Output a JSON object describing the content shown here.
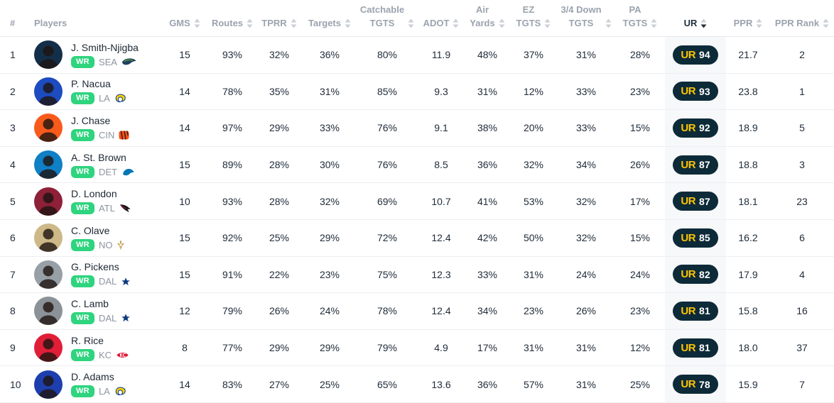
{
  "branding": {
    "ur_logo_text": "UR"
  },
  "colors": {
    "position_badge": "#2ED47E",
    "ur_badge_bg": "#0D2A38",
    "ur_badge_gold": "#FFC400",
    "ur_column_bg": "#F7F8FA",
    "header_text": "#9BA3AE",
    "accent_sorted": "#22313F"
  },
  "sort": {
    "column": "UR",
    "direction": "desc"
  },
  "table": {
    "columns": [
      {
        "key": "rank",
        "lines": [
          "#"
        ],
        "sortable": false,
        "align": "left"
      },
      {
        "key": "player",
        "lines": [
          "Players"
        ],
        "sortable": false,
        "align": "left"
      },
      {
        "key": "gms",
        "lines": [
          "GMS"
        ],
        "sortable": true
      },
      {
        "key": "routes",
        "lines": [
          "Routes"
        ],
        "sortable": true
      },
      {
        "key": "tprr",
        "lines": [
          "TPRR"
        ],
        "sortable": true
      },
      {
        "key": "targets",
        "lines": [
          "Targets"
        ],
        "sortable": true
      },
      {
        "key": "catchable_tgts",
        "lines": [
          "Catchable",
          "TGTS"
        ],
        "sortable": true
      },
      {
        "key": "adot",
        "lines": [
          "ADOT"
        ],
        "sortable": true
      },
      {
        "key": "air_yards",
        "lines": [
          "Air",
          "Yards"
        ],
        "sortable": true
      },
      {
        "key": "ez_tgts",
        "lines": [
          "EZ",
          "TGTS"
        ],
        "sortable": true
      },
      {
        "key": "down_tgts",
        "lines": [
          "3/4 Down",
          "TGTS"
        ],
        "sortable": true
      },
      {
        "key": "pa_tgts",
        "lines": [
          "PA",
          "TGTS"
        ],
        "sortable": true
      },
      {
        "key": "ur",
        "lines": [
          "UR"
        ],
        "sortable": true,
        "sorted": "desc"
      },
      {
        "key": "ppr",
        "lines": [
          "PPR"
        ],
        "sortable": true
      },
      {
        "key": "ppr_rank",
        "lines": [
          "PPR Rank"
        ],
        "sortable": true
      }
    ]
  },
  "players": [
    {
      "rank": "1",
      "name": "J. Smith-Njigba",
      "position": "WR",
      "team": "SEA",
      "avatar_color": "#132e49",
      "gms": "15",
      "routes": "93%",
      "tprr": "32%",
      "targets": "36%",
      "catchable_tgts": "80%",
      "adot": "11.9",
      "air_yards": "48%",
      "ez_tgts": "37%",
      "down_tgts": "31%",
      "pa_tgts": "28%",
      "ur": "94",
      "ppr": "21.7",
      "ppr_rank": "2"
    },
    {
      "rank": "2",
      "name": "P. Nacua",
      "position": "WR",
      "team": "LA",
      "avatar_color": "#1d4bc0",
      "gms": "14",
      "routes": "78%",
      "tprr": "35%",
      "targets": "31%",
      "catchable_tgts": "85%",
      "adot": "9.3",
      "air_yards": "31%",
      "ez_tgts": "12%",
      "down_tgts": "33%",
      "pa_tgts": "23%",
      "ur": "93",
      "ppr": "23.8",
      "ppr_rank": "1"
    },
    {
      "rank": "3",
      "name": "J. Chase",
      "position": "WR",
      "team": "CIN",
      "avatar_color": "#f85a1c",
      "gms": "14",
      "routes": "97%",
      "tprr": "29%",
      "targets": "33%",
      "catchable_tgts": "76%",
      "adot": "9.1",
      "air_yards": "38%",
      "ez_tgts": "20%",
      "down_tgts": "33%",
      "pa_tgts": "15%",
      "ur": "92",
      "ppr": "18.9",
      "ppr_rank": "5"
    },
    {
      "rank": "4",
      "name": "A. St. Brown",
      "position": "WR",
      "team": "DET",
      "avatar_color": "#0f7fc6",
      "gms": "15",
      "routes": "89%",
      "tprr": "28%",
      "targets": "30%",
      "catchable_tgts": "76%",
      "adot": "8.5",
      "air_yards": "36%",
      "ez_tgts": "32%",
      "down_tgts": "34%",
      "pa_tgts": "26%",
      "ur": "87",
      "ppr": "18.8",
      "ppr_rank": "3"
    },
    {
      "rank": "5",
      "name": "D. London",
      "position": "WR",
      "team": "ATL",
      "avatar_color": "#8e2038",
      "gms": "10",
      "routes": "93%",
      "tprr": "28%",
      "targets": "32%",
      "catchable_tgts": "69%",
      "adot": "10.7",
      "air_yards": "41%",
      "ez_tgts": "53%",
      "down_tgts": "32%",
      "pa_tgts": "17%",
      "ur": "87",
      "ppr": "18.1",
      "ppr_rank": "23"
    },
    {
      "rank": "6",
      "name": "C. Olave",
      "position": "WR",
      "team": "NO",
      "avatar_color": "#cdb888",
      "gms": "15",
      "routes": "92%",
      "tprr": "25%",
      "targets": "29%",
      "catchable_tgts": "72%",
      "adot": "12.4",
      "air_yards": "42%",
      "ez_tgts": "50%",
      "down_tgts": "32%",
      "pa_tgts": "15%",
      "ur": "85",
      "ppr": "16.2",
      "ppr_rank": "6"
    },
    {
      "rank": "7",
      "name": "G. Pickens",
      "position": "WR",
      "team": "DAL",
      "avatar_color": "#97a0a6",
      "gms": "15",
      "routes": "91%",
      "tprr": "22%",
      "targets": "23%",
      "catchable_tgts": "75%",
      "adot": "12.3",
      "air_yards": "33%",
      "ez_tgts": "31%",
      "down_tgts": "24%",
      "pa_tgts": "24%",
      "ur": "82",
      "ppr": "17.9",
      "ppr_rank": "4"
    },
    {
      "rank": "8",
      "name": "C. Lamb",
      "position": "WR",
      "team": "DAL",
      "avatar_color": "#8b9298",
      "gms": "12",
      "routes": "79%",
      "tprr": "26%",
      "targets": "24%",
      "catchable_tgts": "78%",
      "adot": "12.4",
      "air_yards": "34%",
      "ez_tgts": "23%",
      "down_tgts": "26%",
      "pa_tgts": "23%",
      "ur": "81",
      "ppr": "15.8",
      "ppr_rank": "16"
    },
    {
      "rank": "9",
      "name": "R. Rice",
      "position": "WR",
      "team": "KC",
      "avatar_color": "#e01e38",
      "gms": "8",
      "routes": "77%",
      "tprr": "29%",
      "targets": "29%",
      "catchable_tgts": "79%",
      "adot": "4.9",
      "air_yards": "17%",
      "ez_tgts": "31%",
      "down_tgts": "31%",
      "pa_tgts": "12%",
      "ur": "81",
      "ppr": "18.0",
      "ppr_rank": "37"
    },
    {
      "rank": "10",
      "name": "D. Adams",
      "position": "WR",
      "team": "LA",
      "avatar_color": "#1d3fae",
      "gms": "14",
      "routes": "83%",
      "tprr": "27%",
      "targets": "25%",
      "catchable_tgts": "65%",
      "adot": "13.6",
      "air_yards": "36%",
      "ez_tgts": "57%",
      "down_tgts": "31%",
      "pa_tgts": "25%",
      "ur": "78",
      "ppr": "15.9",
      "ppr_rank": "7"
    }
  ]
}
